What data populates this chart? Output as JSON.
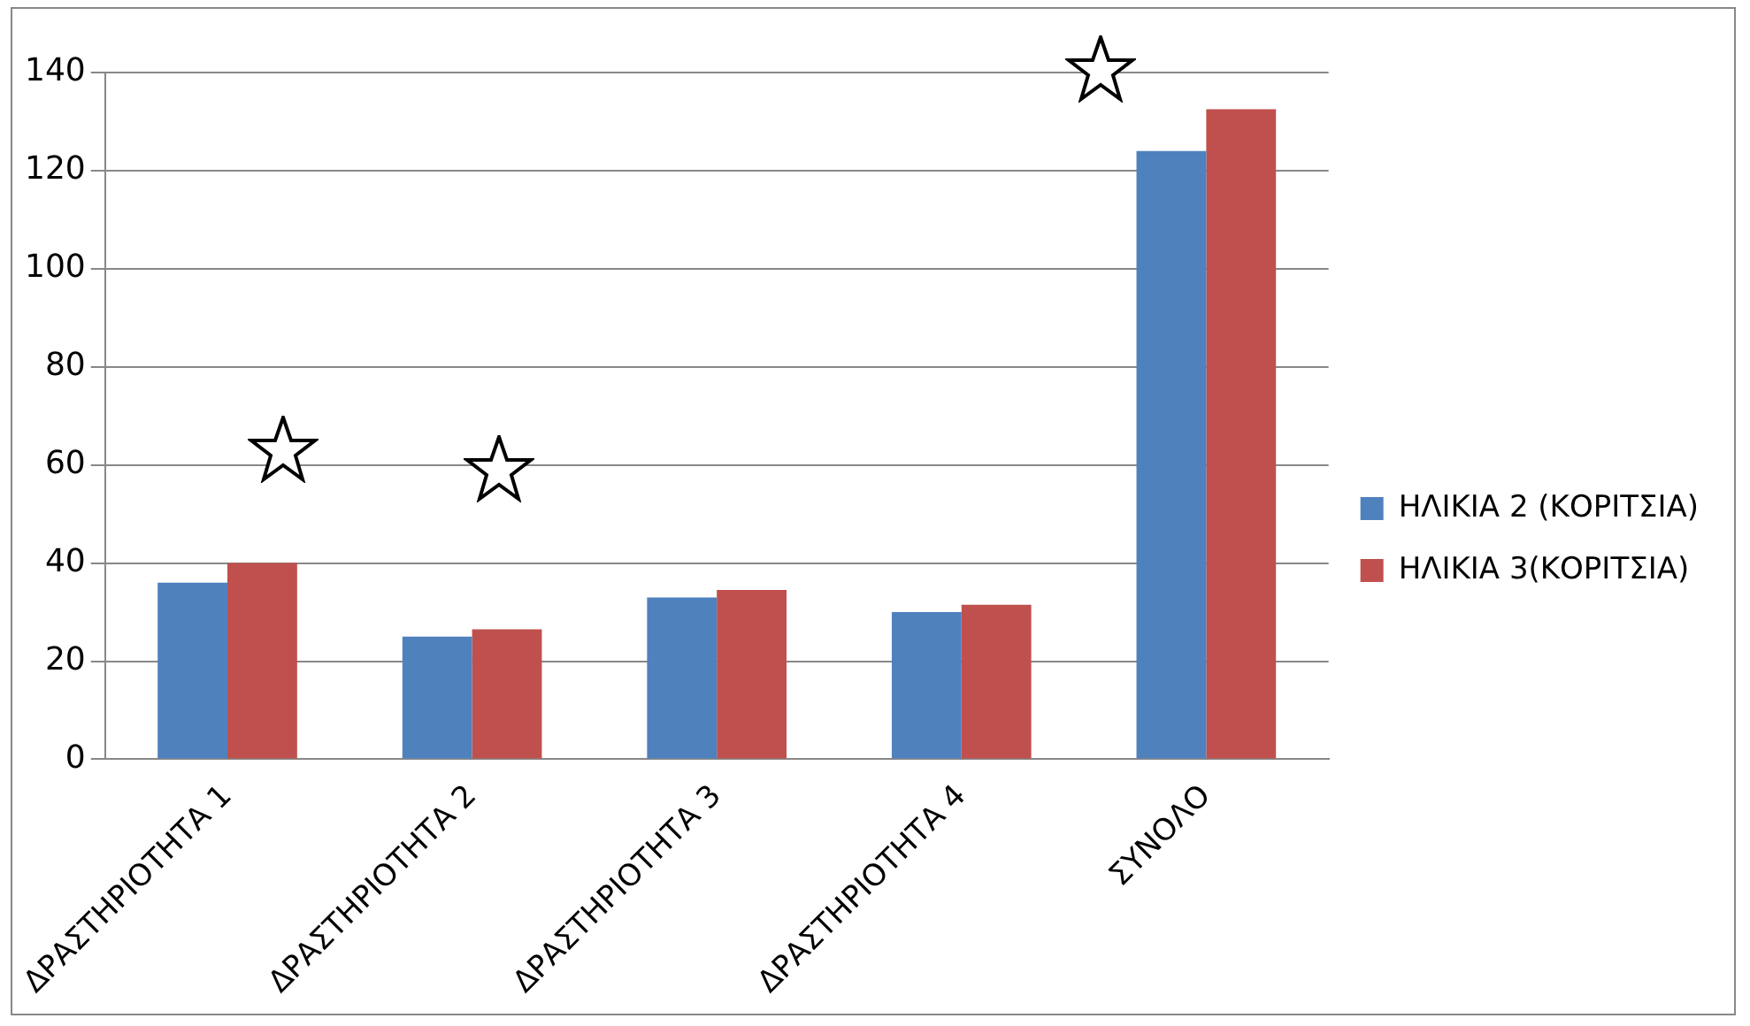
{
  "chart_data": {
    "type": "bar",
    "categories": [
      "ΔΡΑΣΤΗΡΙΟΤΗΤΑ 1",
      "ΔΡΑΣΤΗΡΙΟΤΗΤΑ 2",
      "ΔΡΑΣΤΗΡΙΟΤΗΤΑ 3",
      "ΔΡΑΣΤΗΡΙΟΤΗΤΑ 4",
      "ΣΥΝΟΛΟ"
    ],
    "series": [
      {
        "name": "ΗΛΙΚΙΑ 2 (ΚΟΡΙΤΣΙΑ)",
        "color": "#4f81bd",
        "values": [
          36,
          25,
          33,
          30,
          124
        ]
      },
      {
        "name": "ΗΛΙΚΙΑ 3(ΚΟΡΙΤΣΙΑ)",
        "color": "#c0504d",
        "values": [
          40,
          26.5,
          34.5,
          31.5,
          132.5
        ]
      }
    ],
    "ylim": [
      0,
      140
    ],
    "yticks": [
      0,
      20,
      40,
      60,
      80,
      100,
      120,
      140
    ],
    "grid": "y",
    "legend": "right"
  }
}
